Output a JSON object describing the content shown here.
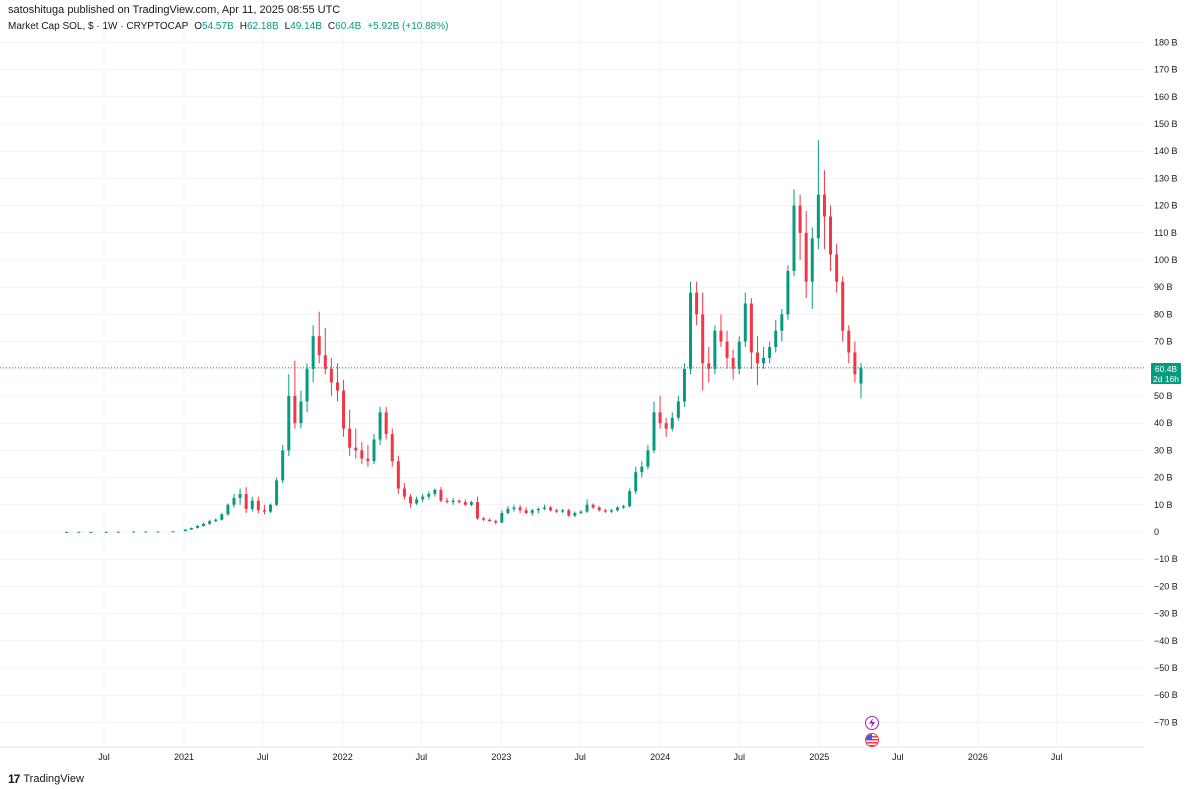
{
  "header": {
    "publish_line": "satoshituga published on TradingView.com, Apr 11, 2025 08:55 UTC"
  },
  "legend": {
    "symbol": "Market Cap SOL, $ · 1W · CRYPTOCAP",
    "open_label": "O",
    "open_value": "54.57B",
    "high_label": "H",
    "high_value": "62.18B",
    "low_label": "L",
    "low_value": "49.14B",
    "close_label": "C",
    "close_value": "60.4B",
    "change": "+5.92B (+10.88%)"
  },
  "price_tag": {
    "value": "60.4B",
    "countdown": "2d 16h"
  },
  "footer": {
    "logo_mark": "17",
    "logo_text": "TradingView"
  },
  "colors": {
    "up": "#089981",
    "down": "#f23645",
    "grid": "#f0f3fa",
    "price_line": "#089981"
  },
  "icons": {
    "event_1": "lightning-icon",
    "event_2": "us-flag-icon"
  },
  "chart_data": {
    "type": "candlestick",
    "title": "",
    "xlabel": "",
    "ylabel": "",
    "y_unit": "B",
    "ylim": [
      -75,
      185
    ],
    "y_ticks": [
      180,
      170,
      160,
      150,
      140,
      130,
      120,
      110,
      100,
      90,
      80,
      70,
      60,
      50,
      40,
      30,
      20,
      10,
      0,
      -10,
      -20,
      -30,
      -40,
      -50,
      -60,
      -70
    ],
    "y_tick_labels": [
      "180 B",
      "170 B",
      "160 B",
      "150 B",
      "140 B",
      "130 B",
      "120 B",
      "110 B",
      "100 B",
      "90 B",
      "80 B",
      "70 B",
      "60 B",
      "50 B",
      "40 B",
      "30 B",
      "20 B",
      "10 B",
      "0",
      "−10 B",
      "−20 B",
      "−30 B",
      "−40 B",
      "−50 B",
      "−60 B",
      "−70 B"
    ],
    "x_ticks": [
      {
        "date": "2020-07-01",
        "label": "Jul"
      },
      {
        "date": "2021-01-01",
        "label": "2021"
      },
      {
        "date": "2021-07-01",
        "label": "Jul"
      },
      {
        "date": "2022-01-01",
        "label": "2022"
      },
      {
        "date": "2022-07-01",
        "label": "Jul"
      },
      {
        "date": "2023-01-01",
        "label": "2023"
      },
      {
        "date": "2023-07-01",
        "label": "Jul"
      },
      {
        "date": "2024-01-01",
        "label": "2024"
      },
      {
        "date": "2024-07-01",
        "label": "Jul"
      },
      {
        "date": "2025-01-01",
        "label": "2025"
      },
      {
        "date": "2025-07-01",
        "label": "Jul"
      },
      {
        "date": "2026-01-01",
        "label": "2026"
      },
      {
        "date": "2026-07-01",
        "label": "Jul"
      }
    ],
    "last_price": 60.4,
    "grid": true,
    "series": [
      {
        "columns": [
          "week_start",
          "open",
          "high",
          "low",
          "close"
        ],
        "values": [
          [
            "2020-04-06",
            0.05,
            0.1,
            0.0,
            0.05
          ],
          [
            "2020-05-04",
            0.05,
            0.1,
            0.0,
            0.05
          ],
          [
            "2020-06-01",
            0.05,
            0.1,
            0.0,
            0.05
          ],
          [
            "2020-07-06",
            0.05,
            0.15,
            0.0,
            0.05
          ],
          [
            "2020-08-03",
            0.05,
            0.15,
            0.0,
            0.1
          ],
          [
            "2020-09-07",
            0.1,
            0.2,
            0.05,
            0.15
          ],
          [
            "2020-10-05",
            0.15,
            0.2,
            0.1,
            0.15
          ],
          [
            "2020-11-02",
            0.15,
            0.2,
            0.1,
            0.2
          ],
          [
            "2020-12-07",
            0.2,
            0.3,
            0.15,
            0.25
          ],
          [
            "2021-01-04",
            0.3,
            1.0,
            0.3,
            0.9
          ],
          [
            "2021-01-18",
            0.9,
            1.6,
            0.8,
            1.5
          ],
          [
            "2021-02-01",
            1.5,
            2.5,
            1.3,
            2.2
          ],
          [
            "2021-02-15",
            2.2,
            3.5,
            2.0,
            3.0
          ],
          [
            "2021-03-01",
            3.0,
            4.5,
            2.6,
            4.0
          ],
          [
            "2021-03-15",
            4.0,
            5.0,
            3.6,
            4.5
          ],
          [
            "2021-03-29",
            4.5,
            7.0,
            4.2,
            6.5
          ],
          [
            "2021-04-12",
            6.5,
            10.5,
            6.0,
            10.0
          ],
          [
            "2021-04-26",
            10.0,
            14.0,
            9.0,
            12.5
          ],
          [
            "2021-05-10",
            12.5,
            16.0,
            10.0,
            14.0
          ],
          [
            "2021-05-24",
            14.0,
            16.5,
            7.0,
            8.5
          ],
          [
            "2021-06-07",
            8.5,
            13.0,
            7.5,
            11.5
          ],
          [
            "2021-06-21",
            11.5,
            13.0,
            7.0,
            8.0
          ],
          [
            "2021-07-05",
            8.0,
            10.0,
            6.5,
            7.5
          ],
          [
            "2021-07-19",
            7.5,
            10.5,
            7.0,
            10.0
          ],
          [
            "2021-08-02",
            10.0,
            20.0,
            9.5,
            19.0
          ],
          [
            "2021-08-16",
            19.0,
            32.0,
            18.0,
            30.0
          ],
          [
            "2021-08-30",
            30.0,
            58.0,
            28.0,
            50.0
          ],
          [
            "2021-09-13",
            50.0,
            63.0,
            38.0,
            40.0
          ],
          [
            "2021-09-27",
            40.0,
            52.0,
            38.0,
            48.0
          ],
          [
            "2021-10-11",
            48.0,
            62.0,
            44.0,
            60.0
          ],
          [
            "2021-10-25",
            60.0,
            76.0,
            55.0,
            72.0
          ],
          [
            "2021-11-08",
            72.0,
            81.0,
            62.0,
            65.0
          ],
          [
            "2021-11-22",
            65.0,
            75.0,
            58.0,
            60.0
          ],
          [
            "2021-12-06",
            60.0,
            64.0,
            50.0,
            55.0
          ],
          [
            "2021-12-20",
            55.0,
            62.0,
            48.0,
            52.0
          ],
          [
            "2022-01-03",
            52.0,
            56.0,
            35.0,
            38.0
          ],
          [
            "2022-01-17",
            38.0,
            45.0,
            28.0,
            31.0
          ],
          [
            "2022-01-31",
            31.0,
            38.0,
            27.0,
            30.0
          ],
          [
            "2022-02-14",
            30.0,
            33.0,
            25.0,
            27.0
          ],
          [
            "2022-02-28",
            27.0,
            32.0,
            24.0,
            26.0
          ],
          [
            "2022-03-14",
            26.0,
            36.0,
            25.0,
            34.0
          ],
          [
            "2022-03-28",
            34.0,
            46.0,
            32.0,
            44.0
          ],
          [
            "2022-04-11",
            44.0,
            46.0,
            34.0,
            36.0
          ],
          [
            "2022-04-25",
            36.0,
            38.0,
            24.0,
            26.0
          ],
          [
            "2022-05-09",
            26.0,
            28.0,
            14.0,
            16.0
          ],
          [
            "2022-05-23",
            16.0,
            18.0,
            12.0,
            13.0
          ],
          [
            "2022-06-06",
            13.0,
            14.0,
            9.0,
            10.5
          ],
          [
            "2022-06-20",
            10.5,
            13.0,
            10.0,
            12.0
          ],
          [
            "2022-07-04",
            12.0,
            14.0,
            11.0,
            13.0
          ],
          [
            "2022-07-18",
            13.0,
            15.0,
            12.0,
            14.0
          ],
          [
            "2022-08-01",
            14.0,
            16.0,
            13.0,
            15.5
          ],
          [
            "2022-08-15",
            15.5,
            16.5,
            11.0,
            11.5
          ],
          [
            "2022-08-29",
            11.5,
            12.5,
            10.5,
            11.0
          ],
          [
            "2022-09-12",
            11.0,
            12.5,
            10.0,
            11.5
          ],
          [
            "2022-09-26",
            11.5,
            12.0,
            10.5,
            11.0
          ],
          [
            "2022-10-10",
            11.0,
            12.0,
            9.5,
            10.0
          ],
          [
            "2022-10-24",
            10.0,
            11.5,
            9.5,
            11.0
          ],
          [
            "2022-11-07",
            11.0,
            13.0,
            4.5,
            5.0
          ],
          [
            "2022-11-21",
            5.0,
            5.5,
            4.0,
            4.5
          ],
          [
            "2022-12-05",
            4.5,
            5.0,
            3.8,
            4.0
          ],
          [
            "2022-12-19",
            4.0,
            4.5,
            2.8,
            3.5
          ],
          [
            "2023-01-02",
            3.5,
            8.0,
            3.2,
            7.0
          ],
          [
            "2023-01-16",
            7.0,
            9.5,
            6.5,
            8.5
          ],
          [
            "2023-01-30",
            8.5,
            10.0,
            7.5,
            9.0
          ],
          [
            "2023-02-13",
            9.0,
            10.0,
            7.0,
            8.0
          ],
          [
            "2023-02-27",
            8.0,
            9.0,
            6.5,
            7.0
          ],
          [
            "2023-03-13",
            7.0,
            8.5,
            6.0,
            8.0
          ],
          [
            "2023-03-27",
            8.0,
            9.0,
            7.0,
            8.5
          ],
          [
            "2023-04-10",
            8.5,
            10.0,
            8.0,
            9.0
          ],
          [
            "2023-04-24",
            9.0,
            9.5,
            7.5,
            8.0
          ],
          [
            "2023-05-08",
            8.0,
            8.5,
            7.0,
            7.5
          ],
          [
            "2023-05-22",
            7.5,
            8.5,
            7.0,
            8.0
          ],
          [
            "2023-06-05",
            8.0,
            8.5,
            5.5,
            6.0
          ],
          [
            "2023-06-19",
            6.0,
            7.5,
            5.5,
            7.0
          ],
          [
            "2023-07-03",
            7.0,
            8.0,
            6.5,
            7.5
          ],
          [
            "2023-07-17",
            7.5,
            12.0,
            7.0,
            10.0
          ],
          [
            "2023-07-31",
            10.0,
            10.5,
            8.5,
            9.0
          ],
          [
            "2023-08-14",
            9.0,
            9.5,
            7.5,
            8.0
          ],
          [
            "2023-08-28",
            8.0,
            8.5,
            7.0,
            7.5
          ],
          [
            "2023-09-11",
            7.5,
            8.5,
            7.0,
            8.0
          ],
          [
            "2023-09-25",
            8.0,
            9.5,
            7.5,
            9.0
          ],
          [
            "2023-10-09",
            9.0,
            10.0,
            8.5,
            9.5
          ],
          [
            "2023-10-23",
            9.5,
            16.0,
            9.0,
            15.0
          ],
          [
            "2023-11-06",
            15.0,
            24.0,
            14.0,
            22.0
          ],
          [
            "2023-11-20",
            22.0,
            26.0,
            20.0,
            24.0
          ],
          [
            "2023-12-04",
            24.0,
            32.0,
            23.0,
            30.0
          ],
          [
            "2023-12-18",
            30.0,
            48.0,
            29.0,
            44.0
          ],
          [
            "2024-01-01",
            44.0,
            50.0,
            38.0,
            40.0
          ],
          [
            "2024-01-15",
            40.0,
            42.0,
            35.0,
            38.0
          ],
          [
            "2024-01-29",
            38.0,
            44.0,
            37.0,
            42.0
          ],
          [
            "2024-02-12",
            42.0,
            50.0,
            41.0,
            48.0
          ],
          [
            "2024-02-26",
            48.0,
            62.0,
            46.0,
            60.0
          ],
          [
            "2024-03-11",
            60.0,
            92.0,
            58.0,
            88.0
          ],
          [
            "2024-03-25",
            88.0,
            92.0,
            76.0,
            80.0
          ],
          [
            "2024-04-08",
            80.0,
            88.0,
            52.0,
            62.0
          ],
          [
            "2024-04-22",
            62.0,
            68.0,
            55.0,
            60.0
          ],
          [
            "2024-05-06",
            60.0,
            76.0,
            58.0,
            74.0
          ],
          [
            "2024-05-20",
            74.0,
            80.0,
            68.0,
            70.0
          ],
          [
            "2024-06-03",
            70.0,
            74.0,
            60.0,
            64.0
          ],
          [
            "2024-06-17",
            64.0,
            67.0,
            56.0,
            60.0
          ],
          [
            "2024-07-01",
            60.0,
            72.0,
            58.0,
            70.0
          ],
          [
            "2024-07-15",
            70.0,
            88.0,
            68.0,
            84.0
          ],
          [
            "2024-07-29",
            84.0,
            86.0,
            60.0,
            66.0
          ],
          [
            "2024-08-12",
            66.0,
            72.0,
            54.0,
            62.0
          ],
          [
            "2024-08-26",
            62.0,
            68.0,
            60.0,
            64.0
          ],
          [
            "2024-09-09",
            64.0,
            70.0,
            62.0,
            68.0
          ],
          [
            "2024-09-23",
            68.0,
            78.0,
            66.0,
            74.0
          ],
          [
            "2024-10-07",
            74.0,
            82.0,
            70.0,
            80.0
          ],
          [
            "2024-10-21",
            80.0,
            98.0,
            78.0,
            96.0
          ],
          [
            "2024-11-04",
            96.0,
            126.0,
            94.0,
            120.0
          ],
          [
            "2024-11-18",
            120.0,
            124.0,
            100.0,
            110.0
          ],
          [
            "2024-12-02",
            110.0,
            118.0,
            86.0,
            92.0
          ],
          [
            "2024-12-16",
            92.0,
            112.0,
            82.0,
            108.0
          ],
          [
            "2024-12-30",
            108.0,
            144.0,
            104.0,
            124.0
          ],
          [
            "2025-01-13",
            124.0,
            133.0,
            104.0,
            116.0
          ],
          [
            "2025-01-27",
            116.0,
            120.0,
            96.0,
            102.0
          ],
          [
            "2025-02-10",
            102.0,
            106.0,
            88.0,
            92.0
          ],
          [
            "2025-02-24",
            92.0,
            94.0,
            70.0,
            74.0
          ],
          [
            "2025-03-10",
            74.0,
            76.0,
            62.0,
            66.0
          ],
          [
            "2025-03-24",
            66.0,
            70.0,
            55.0,
            58.0
          ],
          [
            "2025-04-07",
            54.57,
            62.18,
            49.14,
            60.4
          ]
        ]
      }
    ]
  }
}
